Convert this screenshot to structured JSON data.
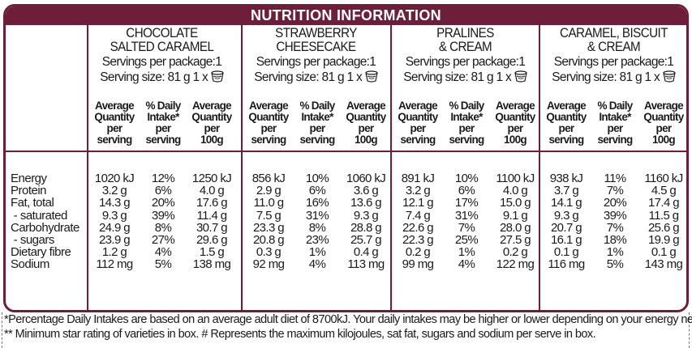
{
  "title": "NUTRITION INFORMATION",
  "products": [
    {
      "name": [
        "CHOCOLATE",
        "SALTED CARAMEL"
      ],
      "servings": "Servings per package:1",
      "serving_size": "Serving size: 81 g 1 x",
      "values": [
        [
          "1020 kJ",
          "12%",
          "1250 kJ"
        ],
        [
          "3.2 g",
          "6%",
          "4.0 g"
        ],
        [
          "14.3 g",
          "20%",
          "17.6 g"
        ],
        [
          "9.3 g",
          "39%",
          "11.4 g"
        ],
        [
          "24.9 g",
          "8%",
          "30.7 g"
        ],
        [
          "23.9 g",
          "27%",
          "29.6 g"
        ],
        [
          "1.2 g",
          "4%",
          "1.5 g"
        ],
        [
          "112 mg",
          "5%",
          "138 mg"
        ]
      ]
    },
    {
      "name": [
        "STRAWBERRY",
        "CHEESECAKE"
      ],
      "servings": "Servings per package:1",
      "serving_size": "Serving size: 81 g 1 x",
      "values": [
        [
          "856 kJ",
          "10%",
          "1060 kJ"
        ],
        [
          "2.9 g",
          "6%",
          "3.6 g"
        ],
        [
          "11.0 g",
          "16%",
          "13.6 g"
        ],
        [
          "7.5 g",
          "31%",
          "9.3 g"
        ],
        [
          "23.3 g",
          "8%",
          "28.8 g"
        ],
        [
          "20.8 g",
          "23%",
          "25.7 g"
        ],
        [
          "0.3 g",
          "1%",
          "0.4 g"
        ],
        [
          "92 mg",
          "4%",
          "113 mg"
        ]
      ]
    },
    {
      "name": [
        "PRALINES",
        "& CREAM"
      ],
      "servings": "Servings per package:1",
      "serving_size": "Serving size: 81 g 1 x",
      "values": [
        [
          "891 kJ",
          "10%",
          "1100 kJ"
        ],
        [
          "3.2 g",
          "6%",
          "4.0 g"
        ],
        [
          "12.1 g",
          "17%",
          "15.0 g"
        ],
        [
          "7.4 g",
          "31%",
          "9.1 g"
        ],
        [
          "22.6 g",
          "7%",
          "28.0 g"
        ],
        [
          "22.3 g",
          "25%",
          "27.5 g"
        ],
        [
          "0.2 g",
          "1%",
          "0.2 g"
        ],
        [
          "99 mg",
          "4%",
          "122 mg"
        ]
      ]
    },
    {
      "name": [
        "CARAMEL, BISCUIT",
        "& CREAM"
      ],
      "servings": "Servings per package:1",
      "serving_size": "Serving size: 81 g 1 x",
      "values": [
        [
          "938 kJ",
          "11%",
          "1160 kJ"
        ],
        [
          "3.7 g",
          "7%",
          "4.5 g"
        ],
        [
          "14.1 g",
          "20%",
          "17.4 g"
        ],
        [
          "9.3 g",
          "39%",
          "11.5 g"
        ],
        [
          "20.7 g",
          "7%",
          "25.6 g"
        ],
        [
          "16.1 g",
          "18%",
          "19.9 g"
        ],
        [
          "0.1 g",
          "1%",
          "0.1 g"
        ],
        [
          "116 mg",
          "5%",
          "143 mg"
        ]
      ]
    }
  ],
  "column_headers": [
    [
      "Average",
      "Quantity",
      "per",
      "serving"
    ],
    [
      "% Daily",
      "Intake*",
      "per",
      "serving"
    ],
    [
      "Average",
      "Quantity",
      "per",
      "100g"
    ]
  ],
  "row_labels": [
    "Energy",
    "Protein",
    "Fat, total",
    " - saturated",
    "Carbohydrate",
    " - sugars",
    "Dietary fibre",
    "Sodium"
  ],
  "footnotes": [
    "*Percentage Daily Intakes are based on an average adult diet of 8700kJ. Your daily intakes may be higher or lower depending on your energy needs.",
    "** Minimum star rating of varieties in box. # Represents the maximum kilojoules, sat fat, sugars and sodium per serve in box."
  ],
  "colors": {
    "accent": "#6e1e38",
    "text": "#1a1a1a",
    "background": "#ffffff"
  },
  "icons": {
    "serving_cup": "yogurt-cup-icon"
  }
}
